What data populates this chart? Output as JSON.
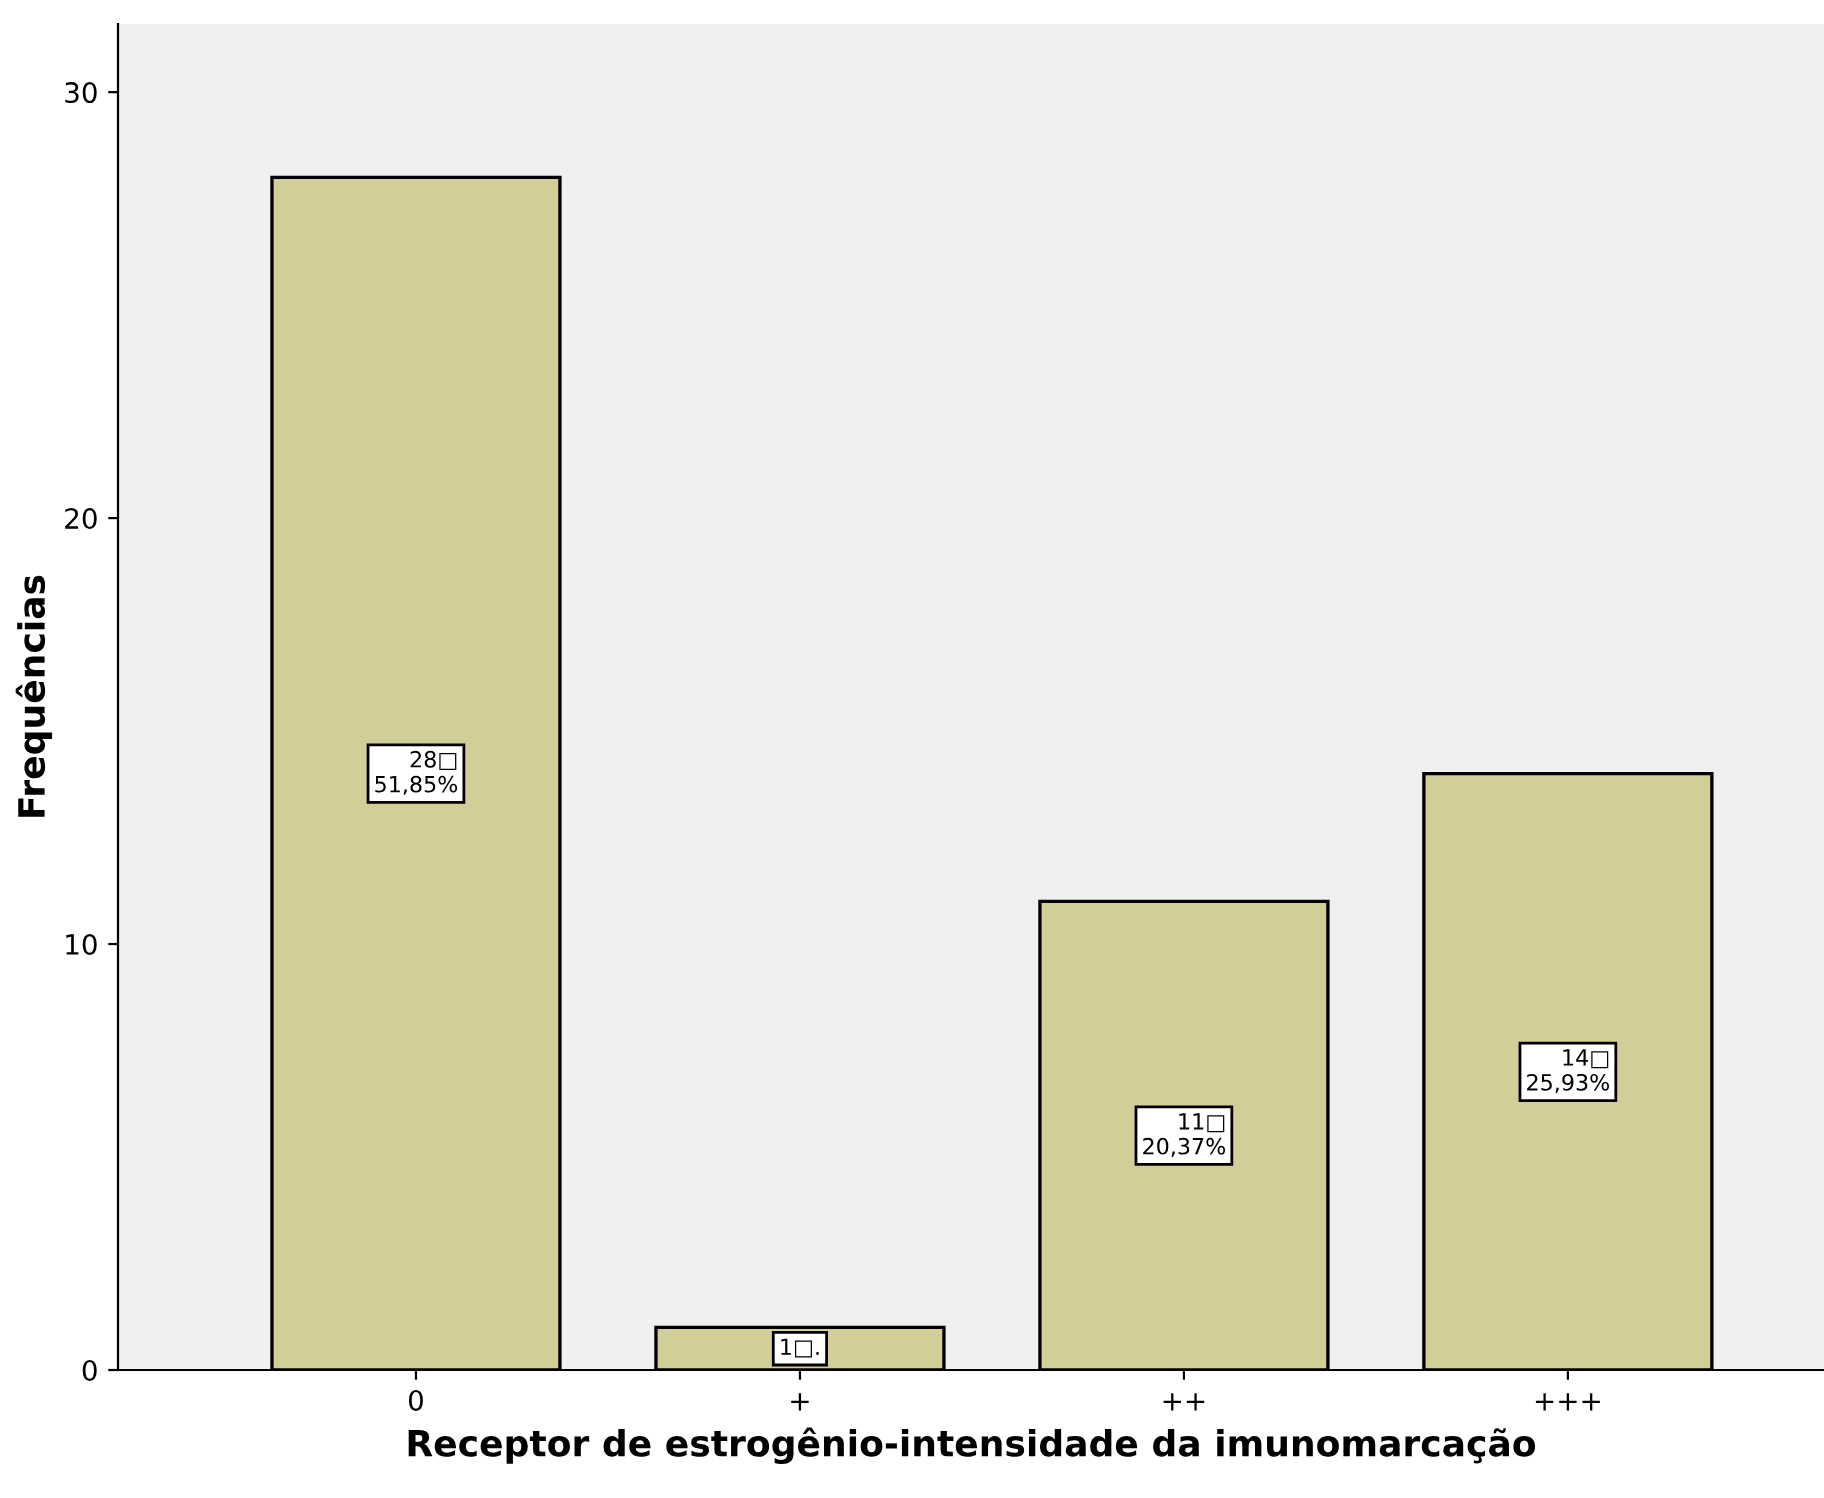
{
  "chart_data": {
    "type": "bar",
    "xlabel": "Receptor de estrogênio-intensidade da imunomarcação",
    "ylabel": "Frequências",
    "categories": [
      "0",
      "+",
      "++",
      "+++"
    ],
    "values": [
      28,
      1,
      11,
      14
    ],
    "value_labels": [
      "28□\n51,85%",
      "1□.",
      "11□\n20,37%",
      "14□\n25,93%"
    ],
    "color": "#d3ce97",
    "ylim": [
      0,
      31.6
    ],
    "yticks": [
      0,
      10,
      20,
      30
    ],
    "grid": false,
    "legend": false
  }
}
